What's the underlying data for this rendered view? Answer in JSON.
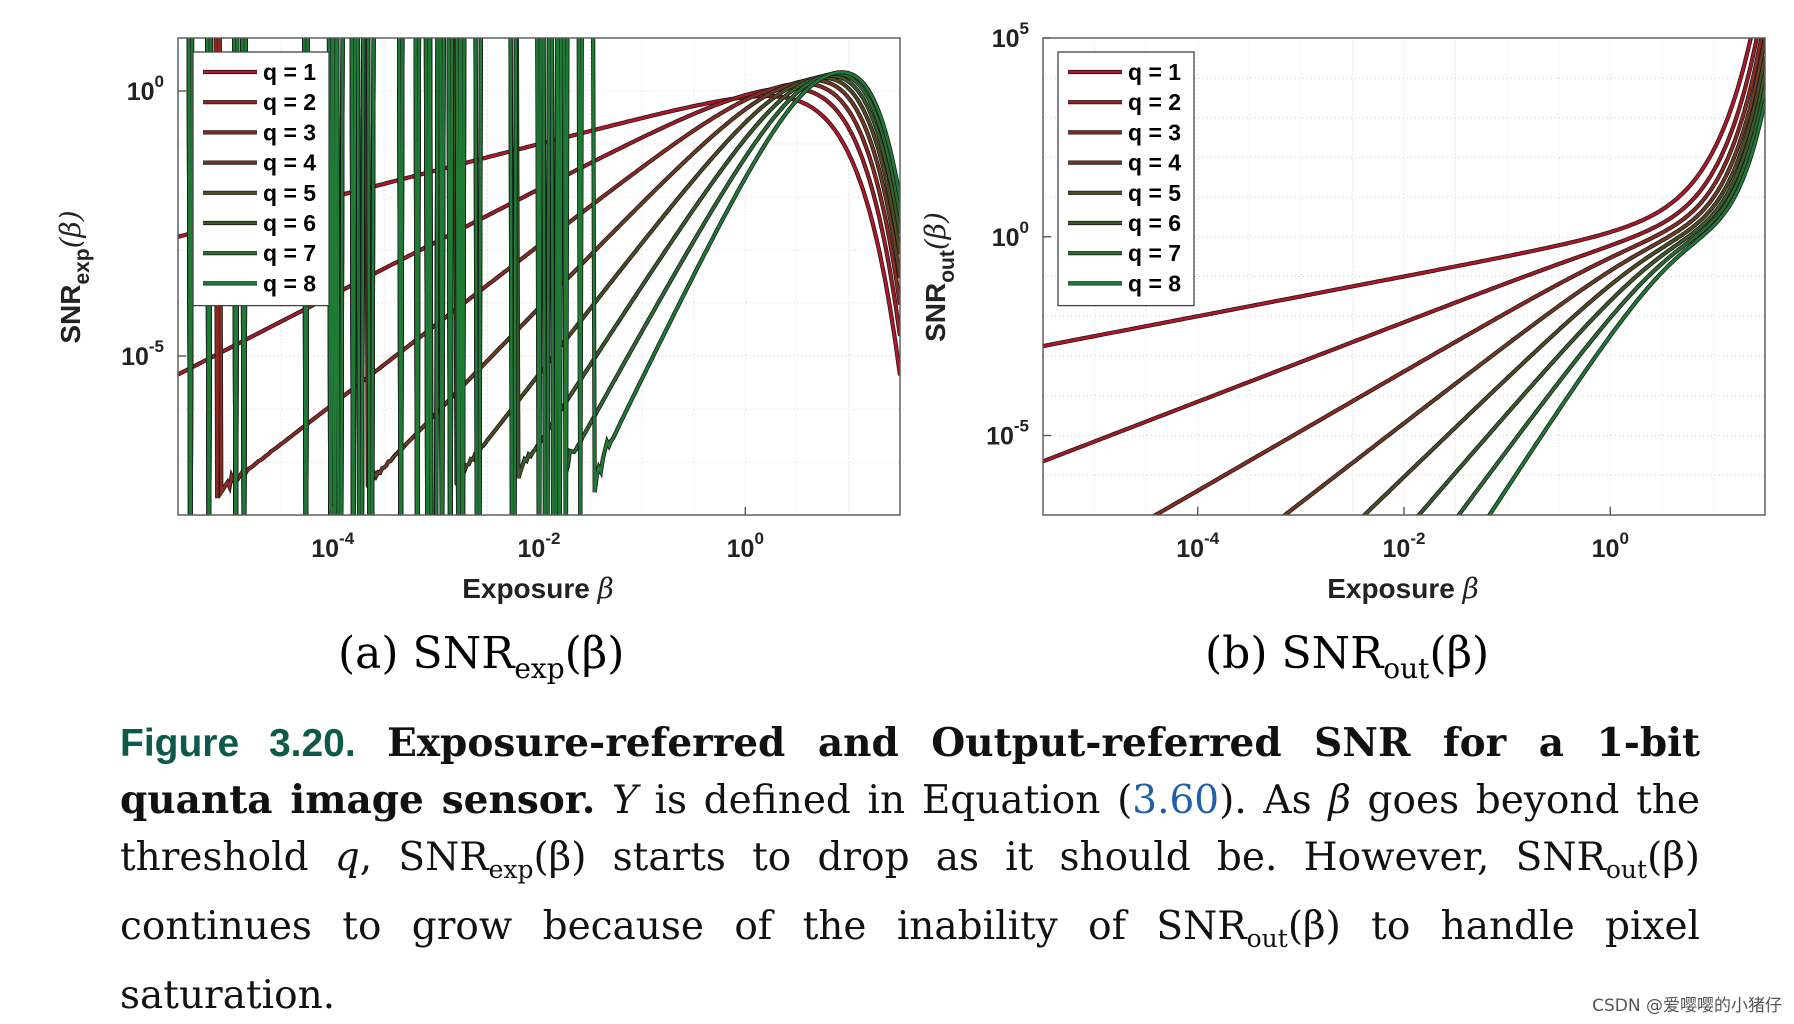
{
  "chart_data": [
    {
      "type": "line",
      "id": "a",
      "title": "",
      "xlabel": "Exposure β",
      "ylabel": "SNR_exp(β)",
      "xscale": "log",
      "yscale": "log",
      "xlim_log10": [
        -5.5,
        1.5
      ],
      "ylim_log10": [
        -8.0,
        1.0
      ],
      "x_ticks": [
        {
          "label": "10-4",
          "exp": -4
        },
        {
          "label": "10-2",
          "exp": -2
        },
        {
          "label": "100",
          "exp": 0
        }
      ],
      "y_ticks": [
        {
          "label": "100",
          "exp": 0
        },
        {
          "label": "10-5",
          "exp": -5
        }
      ],
      "grid": true,
      "legend": "top-left",
      "series": [
        {
          "name": "q = 1",
          "q": 1,
          "color": "#b41528"
        },
        {
          "name": "q = 2",
          "q": 2,
          "color": "#a21a24"
        },
        {
          "name": "q = 3",
          "q": 3,
          "color": "#8c2a22"
        },
        {
          "name": "q = 4",
          "q": 4,
          "color": "#6e3a22"
        },
        {
          "name": "q = 5",
          "q": 5,
          "color": "#4f4a22"
        },
        {
          "name": "q = 6",
          "q": 6,
          "color": "#3a5a2a"
        },
        {
          "name": "q = 7",
          "q": 7,
          "color": "#2b6a30"
        },
        {
          "name": "q = 8",
          "q": 8,
          "color": "#1e7a34"
        }
      ]
    },
    {
      "type": "line",
      "id": "b",
      "title": "",
      "xlabel": "Exposure β",
      "ylabel": "SNR_out(β)",
      "xscale": "log",
      "yscale": "log",
      "xlim_log10": [
        -5.5,
        1.5
      ],
      "ylim_log10": [
        -7.0,
        5.0
      ],
      "x_ticks": [
        {
          "label": "10-4",
          "exp": -4
        },
        {
          "label": "10-2",
          "exp": -2
        },
        {
          "label": "100",
          "exp": 0
        }
      ],
      "y_ticks": [
        {
          "label": "105",
          "exp": 5
        },
        {
          "label": "100",
          "exp": 0
        },
        {
          "label": "10-5",
          "exp": -5
        }
      ],
      "grid": true,
      "legend": "top-left",
      "series": [
        {
          "name": "q = 1",
          "q": 1,
          "color": "#b41528"
        },
        {
          "name": "q = 2",
          "q": 2,
          "color": "#a21a24"
        },
        {
          "name": "q = 3",
          "q": 3,
          "color": "#8c2a22"
        },
        {
          "name": "q = 4",
          "q": 4,
          "color": "#6e3a22"
        },
        {
          "name": "q = 5",
          "q": 5,
          "color": "#4f4a22"
        },
        {
          "name": "q = 6",
          "q": 6,
          "color": "#3a5a2a"
        },
        {
          "name": "q = 7",
          "q": 7,
          "color": "#2b6a30"
        },
        {
          "name": "q = 8",
          "q": 8,
          "color": "#1e7a34"
        }
      ]
    }
  ],
  "subcaptions": {
    "a": {
      "prefix": "(a) SNR",
      "sub": "exp",
      "suffix": "(β)"
    },
    "b": {
      "prefix": "(b) SNR",
      "sub": "out",
      "suffix": "(β)"
    }
  },
  "caption": {
    "label": "Figure 3.20.",
    "title": "Exposure-referred and Output-referred SNR for a 1-bit quanta image sensor.",
    "Y": "Y",
    "t1": " is defined in Equation ",
    "ref_open": "(",
    "ref": "3.60",
    "ref_close": ").",
    "t2": "  As ",
    "beta": "β",
    "t3": " goes beyond the threshold ",
    "q": "q",
    "t4": ", SNR",
    "sub_exp": "exp",
    "t5": "(β) starts to drop as it should be.  However, SNR",
    "sub_out1": "out",
    "t6": "(β) continues to grow because of the inability of SNR",
    "sub_out2": "out",
    "t7": "(β) to handle pixel saturation."
  },
  "watermark": "CSDN @爱嘤嘤的小猪仔"
}
